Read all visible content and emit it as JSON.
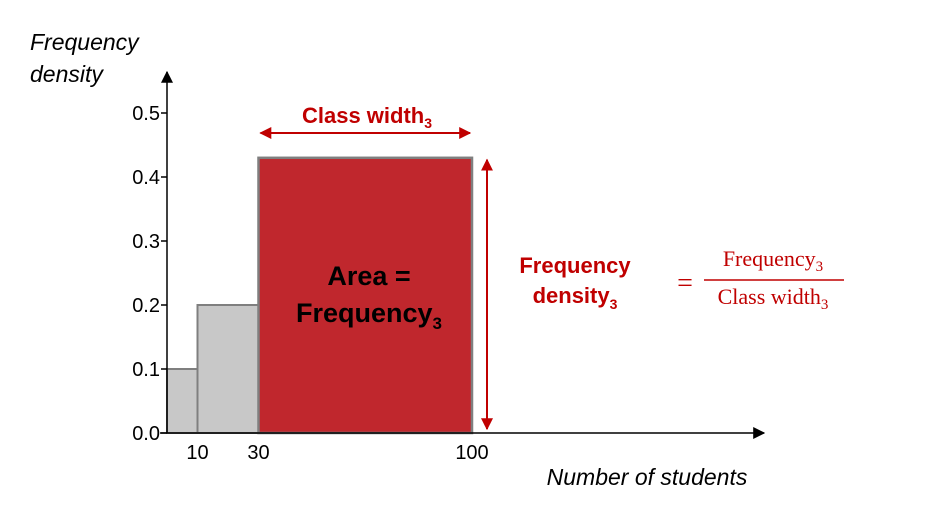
{
  "chart_data": {
    "type": "bar",
    "subtype": "histogram",
    "ylabel": [
      "Frequency",
      "density"
    ],
    "xlabel": "Number of students",
    "ylim": [
      0,
      0.5
    ],
    "yticks": [
      "0.0",
      "0.1",
      "0.2",
      "0.3",
      "0.4",
      "0.5"
    ],
    "xticks": [
      {
        "value": 10,
        "label": "10"
      },
      {
        "value": 30,
        "label": "30"
      },
      {
        "value": 100,
        "label": "100"
      }
    ],
    "bins": [
      {
        "start": 0,
        "end": 10,
        "density": 0.1,
        "highlight": false
      },
      {
        "start": 10,
        "end": 30,
        "density": 0.2,
        "highlight": false
      },
      {
        "start": 30,
        "end": 100,
        "density": 0.43,
        "highlight": true
      }
    ],
    "annotations": {
      "class_width": {
        "text": "Class width",
        "sub": "3"
      },
      "area": {
        "line1": "Area =",
        "line2": "Frequency",
        "sub": "3"
      },
      "freq_density": {
        "line1": "Frequency",
        "line2": "density",
        "sub": "3"
      },
      "formula": {
        "equals": "=",
        "numerator": "Frequency",
        "numerator_sub": "3",
        "denominator": "Class width",
        "denominator_sub": "3"
      }
    },
    "colors": {
      "highlight": "#c0272d",
      "bar": "#c8c8c8",
      "bar_edge": "#7f7f7f",
      "accent_text": "#c00000",
      "axis": "#000000"
    }
  }
}
